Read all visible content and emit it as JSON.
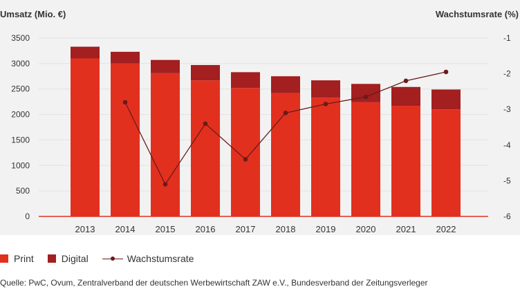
{
  "colors": {
    "print": "#e2301f",
    "digital": "#a31f20",
    "growth": "#6b1a1a",
    "baseline": "#e2301f",
    "grid": "#e2e2e2",
    "tick_text": "#333333"
  },
  "chart_data": {
    "type": "bar",
    "stacked": true,
    "left_axis_title": "Umsatz (Mio. €)",
    "right_axis_title": "Wachstumsrate (%)",
    "categories": [
      "2013",
      "2014",
      "2015",
      "2016",
      "2017",
      "2018",
      "2019",
      "2020",
      "2021",
      "2022"
    ],
    "series": [
      {
        "name": "Print",
        "values": [
          3100,
          3000,
          2810,
          2670,
          2520,
          2420,
          2330,
          2240,
          2170,
          2100
        ]
      },
      {
        "name": "Digital",
        "values": [
          230,
          230,
          260,
          300,
          310,
          330,
          340,
          360,
          370,
          390
        ]
      }
    ],
    "line_series": {
      "name": "Wachstumsrate",
      "values": [
        null,
        -2.8,
        -5.1,
        -3.4,
        -4.4,
        -3.1,
        -2.85,
        -2.65,
        -2.2,
        -1.95
      ]
    },
    "ylim": [
      0,
      3500
    ],
    "yticks": [
      "0",
      "500",
      "1000",
      "1500",
      "2000",
      "2500",
      "3000",
      "3500"
    ],
    "y2lim": [
      -6,
      -1
    ],
    "y2ticks": [
      "-6",
      "-5",
      "-4",
      "-3",
      "-2",
      "-1"
    ],
    "grid": true,
    "legend_position": "bottom-left"
  },
  "legend": {
    "print_label": "Print",
    "digital_label": "Digital",
    "growth_label": "Wachstumsrate"
  },
  "source_text": "Quelle: PwC, Ovum, Zentralverband der deutschen Werbewirtschaft ZAW e.V., Bundesverband der Zeitungsverleger"
}
